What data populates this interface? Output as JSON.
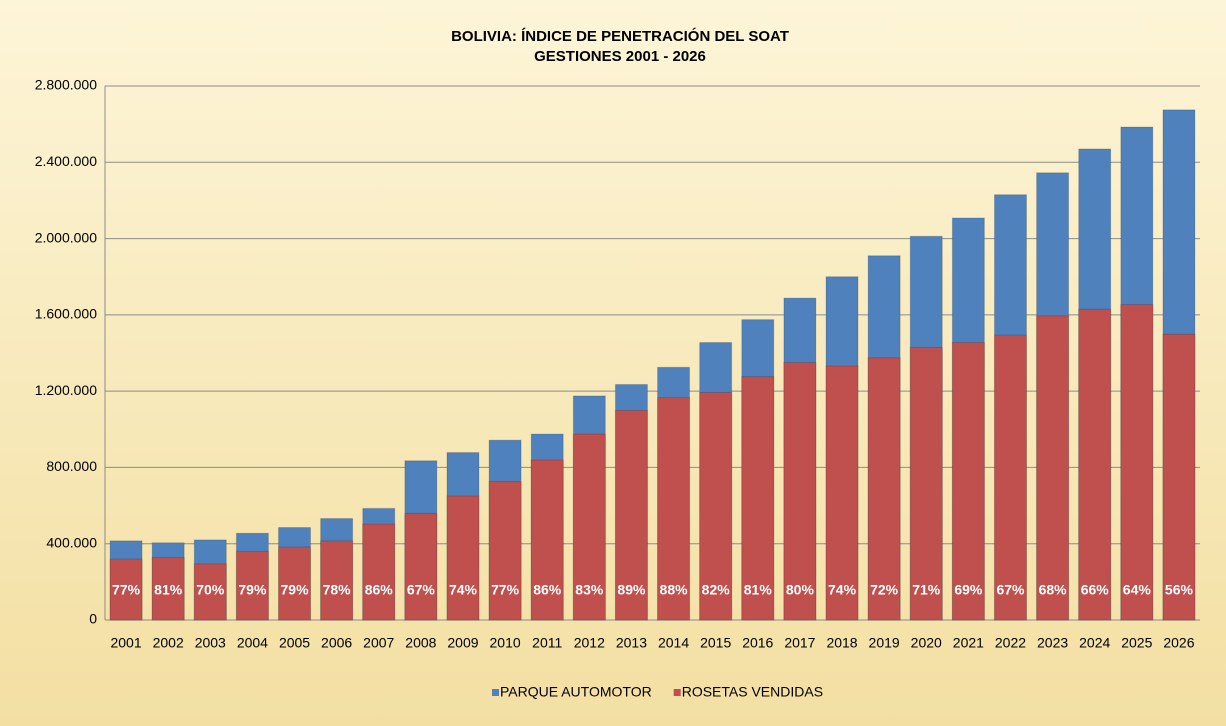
{
  "chart_data": {
    "type": "bar",
    "title": "BOLIVIA: ÍNDICE DE PENETRACIÓN DEL SOAT",
    "subtitle": "GESTIONES 2001 - 2026",
    "categories": [
      "2001",
      "2002",
      "2003",
      "2004",
      "2005",
      "2006",
      "2007",
      "2008",
      "2009",
      "2010",
      "2011",
      "2012",
      "2013",
      "2014",
      "2015",
      "2016",
      "2017",
      "2018",
      "2019",
      "2020",
      "2021",
      "2022",
      "2023",
      "2024",
      "2025",
      "2026"
    ],
    "series": [
      {
        "name": "PARQUE AUTOMOTOR",
        "color": "#4f81bd",
        "values": [
          415000,
          405000,
          420000,
          455000,
          485000,
          532000,
          585000,
          835000,
          878000,
          943000,
          975000,
          1175000,
          1235000,
          1325000,
          1455000,
          1575000,
          1688000,
          1800000,
          1910000,
          2012000,
          2108000,
          2230000,
          2345000,
          2470000,
          2585000,
          2675000
        ]
      },
      {
        "name": "ROSETAS VENDIDAS",
        "color": "#c0504d",
        "values": [
          320000,
          328000,
          294000,
          360000,
          383000,
          415000,
          503000,
          559000,
          650000,
          726000,
          839000,
          975000,
          1099000,
          1166000,
          1193000,
          1276000,
          1350000,
          1332000,
          1375000,
          1429000,
          1455000,
          1494000,
          1595000,
          1630000,
          1654000,
          1498000
        ]
      }
    ],
    "penetration": {
      "values": [
        77,
        81,
        70,
        79,
        79,
        78,
        86,
        67,
        74,
        77,
        86,
        83,
        89,
        88,
        82,
        81,
        80,
        74,
        72,
        71,
        69,
        67,
        68,
        66,
        64,
        56
      ],
      "value_labels": [
        "77%",
        "81%",
        "70%",
        "79%",
        "79%",
        "78%",
        "86%",
        "67%",
        "74%",
        "77%",
        "86%",
        "83%",
        "89%",
        "88%",
        "82%",
        "81%",
        "80%",
        "74%",
        "72%",
        "71%",
        "69%",
        "67%",
        "68%",
        "66%",
        "64%",
        "56%"
      ]
    },
    "ylim": [
      0,
      2800000
    ],
    "yticks": [
      0,
      {
        "value": 400000,
        "label": "400.000"
      },
      {
        "value": 800000,
        "label": "800.000"
      },
      {
        "value": 1200000,
        "label": "1.200.000"
      },
      {
        "value": 1600000,
        "label": "1.600.000"
      },
      {
        "value": 2000000,
        "label": "2.000.000"
      },
      {
        "value": 2400000,
        "label": "2.400.000"
      },
      {
        "value": 2800000,
        "label": "2.800.000"
      }
    ],
    "grid": true,
    "legend": "bottom"
  }
}
